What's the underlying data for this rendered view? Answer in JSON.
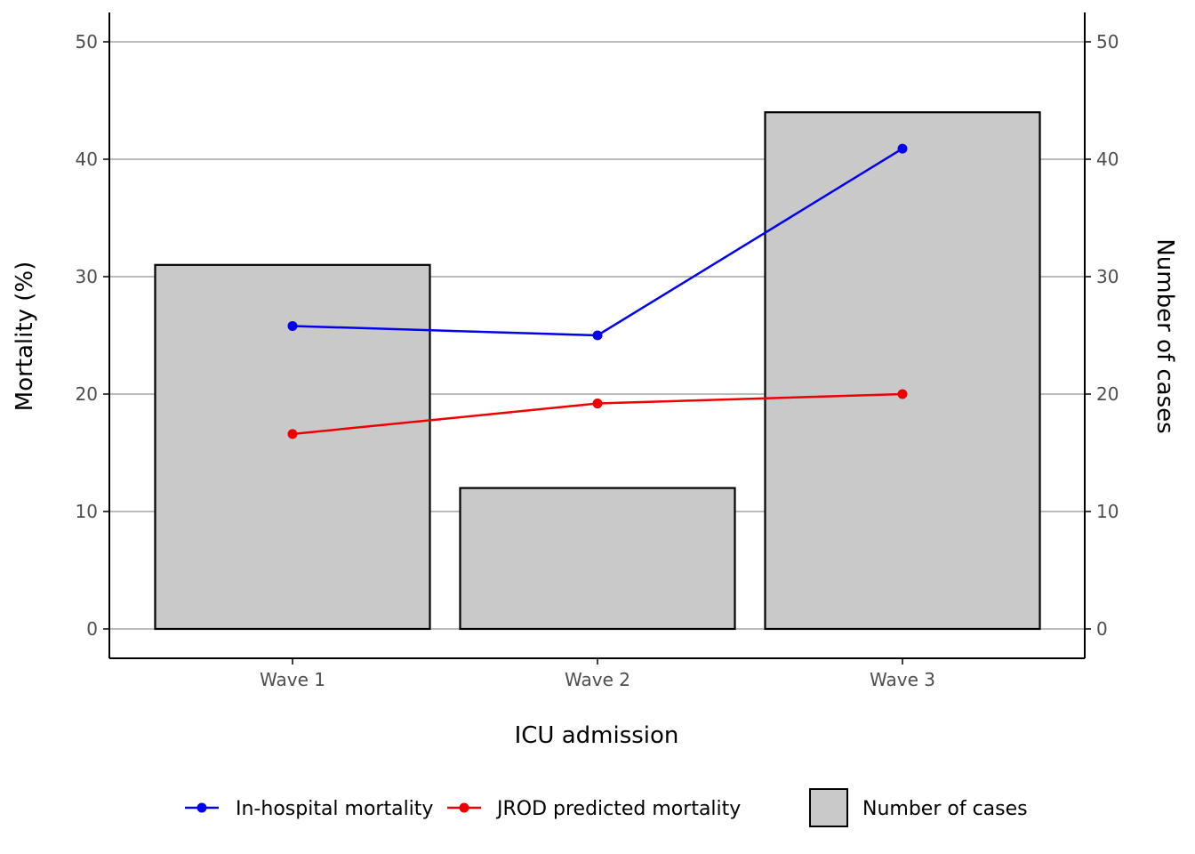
{
  "chart_data": {
    "type": "bar",
    "categories": [
      "Wave 1",
      "Wave 2",
      "Wave 3"
    ],
    "bar_series": {
      "name": "Number of cases",
      "values": [
        31,
        12,
        44
      ],
      "fill": "#c9c9c9",
      "stroke": "#000000"
    },
    "line_series": [
      {
        "name": "In-hospital mortality",
        "values": [
          25.8,
          25.0,
          40.9
        ],
        "color": "#0000ee"
      },
      {
        "name": "JROD predicted mortality",
        "values": [
          16.6,
          19.2,
          20.0
        ],
        "color": "#ee0000"
      }
    ],
    "xlabel": "ICU admission",
    "ylabel": "Mortality (%)",
    "y2label": "Number of cases",
    "ylim": [
      0,
      50
    ],
    "y2lim": [
      0,
      50
    ],
    "yticks": [
      "0",
      "10",
      "20",
      "30",
      "40",
      "50"
    ],
    "y2ticks": [
      "0",
      "10",
      "20",
      "30",
      "40",
      "50"
    ],
    "grid": "horizontal major",
    "legend_position": "bottom"
  }
}
